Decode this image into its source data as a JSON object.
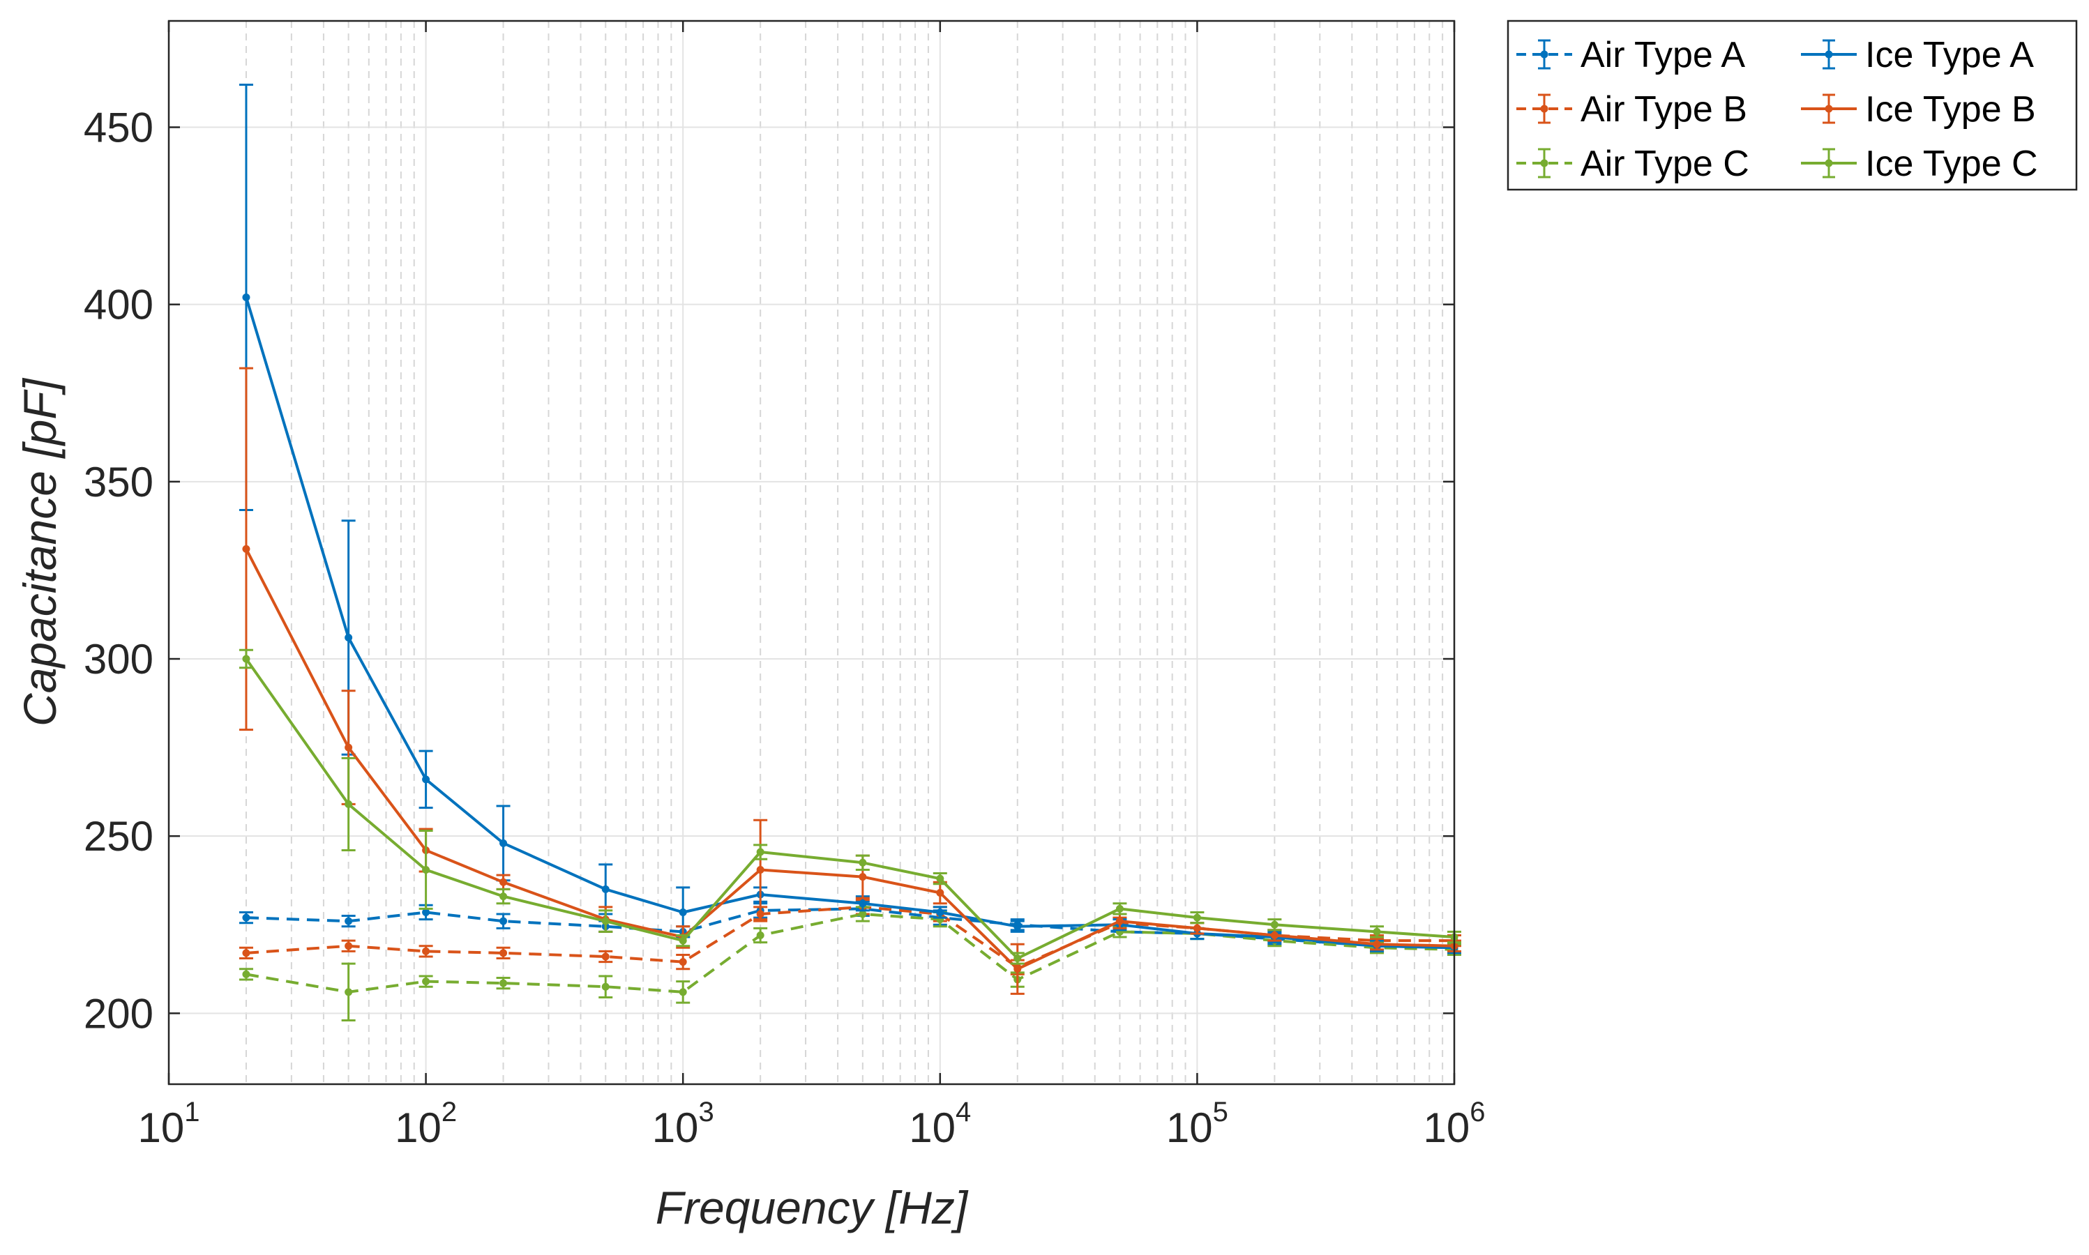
{
  "chart_data": {
    "type": "line",
    "title": "",
    "xlabel": "Frequency [Hz]",
    "ylabel": "Capacitance [pF]",
    "x_scale": "log",
    "xlim": [
      10,
      1000000
    ],
    "ylim": [
      180,
      480
    ],
    "grid": true,
    "legend_position": "outside-top-right",
    "x_ticks": [
      {
        "base": "10",
        "exp": "1"
      },
      {
        "base": "10",
        "exp": "2"
      },
      {
        "base": "10",
        "exp": "3"
      },
      {
        "base": "10",
        "exp": "4"
      },
      {
        "base": "10",
        "exp": "5"
      },
      {
        "base": "10",
        "exp": "6"
      }
    ],
    "y_ticks": [
      "200",
      "250",
      "300",
      "350",
      "400",
      "450"
    ],
    "x": [
      20,
      50,
      100,
      200,
      500,
      1000,
      2000,
      5000,
      10000,
      20000,
      50000,
      100000,
      200000,
      500000,
      1000000
    ],
    "series": [
      {
        "name": "Air Type A",
        "color": "#0072BD",
        "dashed": true,
        "values": [
          227,
          226,
          228.5,
          226,
          224.5,
          223,
          229,
          229.5,
          227,
          225,
          223,
          222.5,
          221,
          219,
          218.5
        ],
        "errors": [
          1.5,
          1.5,
          2,
          2,
          1.5,
          1.5,
          2,
          2,
          2,
          1.5,
          1.5,
          1.5,
          1.5,
          1.5,
          1.5
        ]
      },
      {
        "name": "Air Type B",
        "color": "#D95319",
        "dashed": true,
        "values": [
          217,
          219,
          217.5,
          217,
          216,
          214.5,
          228,
          230,
          228,
          213,
          225.5,
          224,
          222,
          220.5,
          220.5
        ],
        "errors": [
          1.5,
          1.5,
          1.5,
          1.5,
          1.5,
          2,
          2,
          2,
          2,
          2,
          1.5,
          1.5,
          1.5,
          1.5,
          1.5
        ]
      },
      {
        "name": "Air Type C",
        "color": "#77AC30",
        "dashed": true,
        "values": [
          211,
          206,
          209,
          208.5,
          207.5,
          206,
          222,
          228,
          226.5,
          209.5,
          223,
          222.5,
          220.5,
          218.5,
          218
        ],
        "errors": [
          1.5,
          8,
          1.5,
          1.5,
          3,
          3,
          2,
          2,
          2,
          2,
          1.5,
          1.5,
          1.5,
          1.5,
          1.5
        ]
      },
      {
        "name": "Ice Type A",
        "color": "#0072BD",
        "dashed": false,
        "values": [
          402,
          306,
          266,
          248,
          235,
          228.5,
          233.5,
          231,
          228.5,
          224.5,
          225,
          222.5,
          221.5,
          219,
          218.5
        ],
        "errors": [
          60,
          33,
          8,
          10.5,
          7,
          7,
          2,
          2,
          1.5,
          1.5,
          1.5,
          1.5,
          1.5,
          1.5,
          1.5
        ]
      },
      {
        "name": "Ice Type B",
        "color": "#D95319",
        "dashed": false,
        "values": [
          331,
          275,
          246,
          237,
          226.5,
          221.5,
          240.5,
          238.5,
          234,
          212.5,
          226,
          224,
          222,
          219.5,
          219
        ],
        "errors": [
          51,
          16,
          6,
          2,
          3.5,
          3,
          14,
          6,
          3,
          7,
          2,
          1.5,
          1.5,
          1.5,
          1.5
        ]
      },
      {
        "name": "Ice Type C",
        "color": "#77AC30",
        "dashed": false,
        "values": [
          300,
          259,
          240.5,
          233,
          226,
          220.5,
          245.5,
          242.5,
          238,
          215.5,
          229.5,
          227,
          225,
          223,
          221.5
        ],
        "errors": [
          2.5,
          13,
          11,
          2,
          3,
          1.5,
          2,
          2,
          1.5,
          1.5,
          1.5,
          1.5,
          1.5,
          1.5,
          1.5
        ]
      }
    ]
  }
}
